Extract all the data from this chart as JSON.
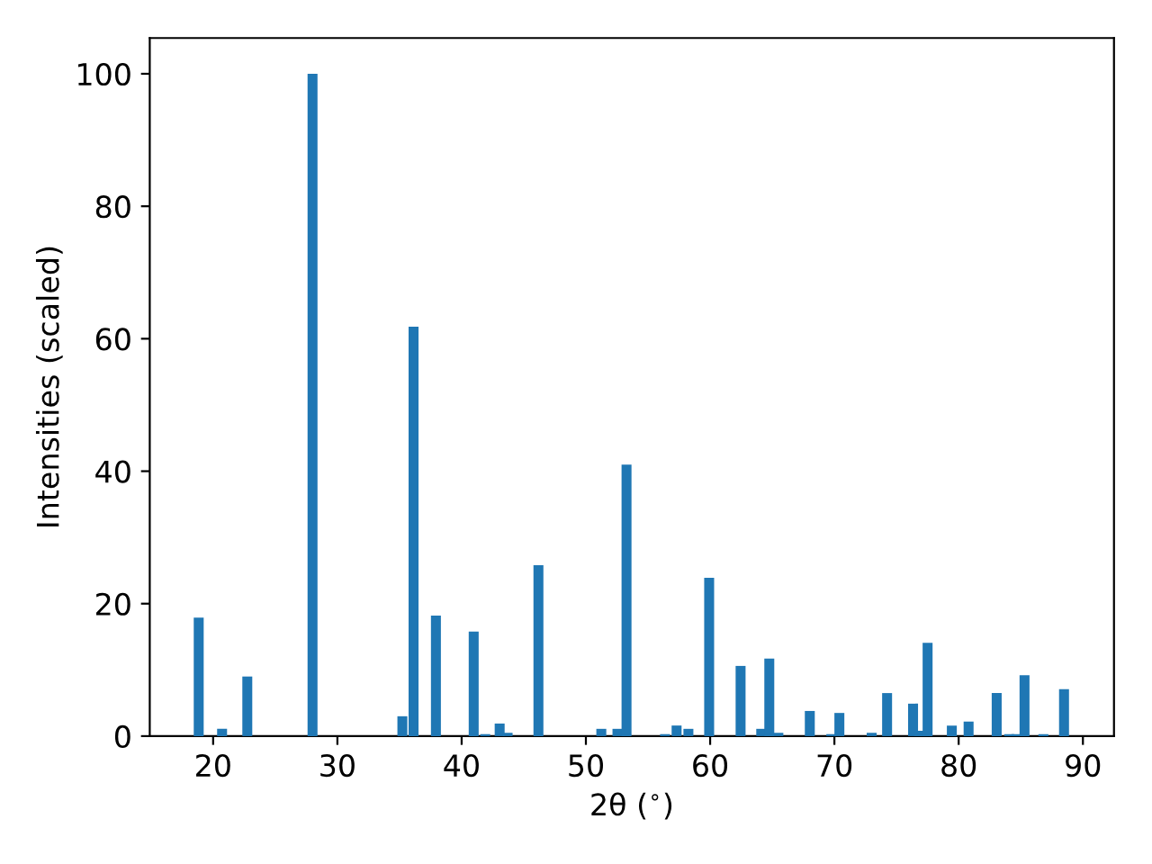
{
  "chart_data": {
    "type": "bar",
    "xlabel": "2θ ($^{∘}$)",
    "ylabel": "Intensities (scaled)",
    "color": "#1f77b4",
    "x": [
      18.84,
      20.72,
      22.75,
      28.0,
      35.23,
      36.13,
      37.93,
      40.97,
      41.9,
      43.06,
      43.7,
      46.18,
      51.24,
      52.54,
      53.27,
      56.37,
      57.3,
      58.25,
      59.92,
      62.45,
      64.11,
      64.76,
      65.49,
      68.02,
      69.75,
      70.4,
      73.0,
      74.24,
      76.33,
      76.8,
      77.5,
      79.45,
      80.8,
      83.06,
      84.07,
      84.65,
      85.3,
      86.82,
      88.48
    ],
    "values": [
      17.9,
      1.1,
      9.0,
      100,
      3.0,
      61.8,
      18.2,
      15.8,
      0.3,
      1.9,
      0.5,
      25.8,
      1.1,
      1.1,
      41.0,
      0.3,
      1.6,
      1.1,
      23.9,
      10.6,
      1.1,
      11.7,
      0.5,
      3.8,
      0.3,
      3.5,
      0.5,
      6.5,
      4.9,
      0.8,
      14.1,
      1.6,
      2.2,
      6.5,
      0.3,
      0.3,
      9.2,
      0.3,
      7.1
    ],
    "xlim": [
      14.9,
      92.5
    ],
    "ylim": [
      0,
      105.4
    ],
    "xticks": [
      20,
      30,
      40,
      50,
      60,
      70,
      80,
      90
    ],
    "yticks": [
      0,
      20,
      40,
      60,
      80,
      100
    ],
    "grid": false
  }
}
